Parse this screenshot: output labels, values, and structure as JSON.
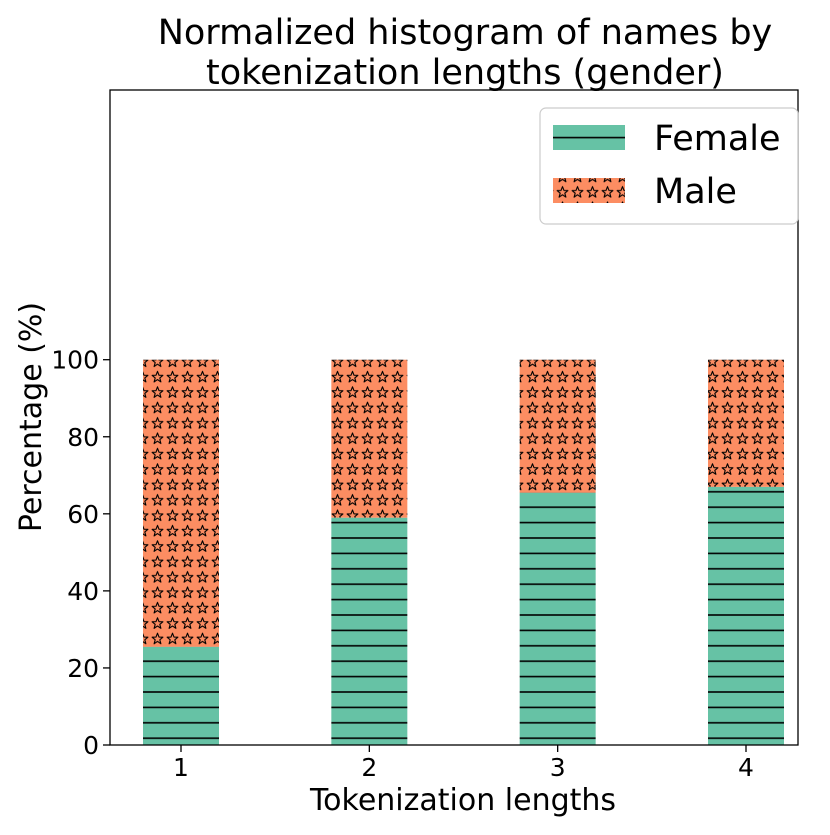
{
  "chart_data": {
    "type": "bar",
    "stacked": true,
    "title": "Normalized histogram of names by tokenization lengths (gender)",
    "title_lines": [
      "Normalized histogram of names by",
      "tokenization lengths (gender)"
    ],
    "xlabel": "Tokenization lengths",
    "ylabel": "Percentage (%)",
    "categories": [
      "1",
      "2",
      "3",
      "4"
    ],
    "yticks": [
      "0",
      "20",
      "40",
      "60",
      "80",
      "100"
    ],
    "ylim": [
      0,
      170
    ],
    "series": [
      {
        "name": "Female",
        "values": [
          25.5,
          59,
          65.5,
          67
        ],
        "color": "#66c2a5",
        "hatch": "horizontal-lines"
      },
      {
        "name": "Male",
        "values": [
          74.5,
          41,
          34.5,
          33
        ],
        "color": "#fc8d62",
        "hatch": "stars"
      }
    ],
    "legend": {
      "position": "top-right",
      "entries": [
        "Female",
        "Male"
      ]
    },
    "grid": false
  }
}
